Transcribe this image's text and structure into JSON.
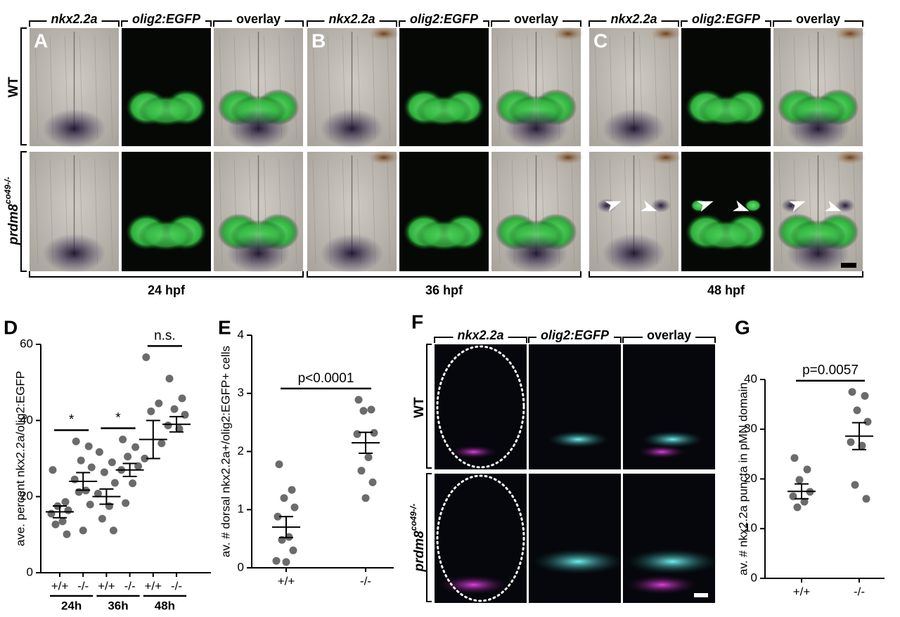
{
  "figure": {
    "panels": [
      {
        "letter": "A",
        "columns": [
          "nkx2.2a",
          "olig2:EGFP",
          "overlay"
        ],
        "time": "24 hpf"
      },
      {
        "letter": "B",
        "columns": [
          "nkx2.2a",
          "olig2:EGFP",
          "overlay"
        ],
        "time": "36 hpf"
      },
      {
        "letter": "C",
        "columns": [
          "nkx2.2a",
          "olig2:EGFP",
          "overlay"
        ],
        "time": "48 hpf"
      }
    ],
    "rows": [
      {
        "label": "WT"
      },
      {
        "label": "prdm8",
        "sup": "co49-/-"
      }
    ],
    "panel_f": {
      "letter": "F",
      "columns": [
        "nkx2.2a",
        "olig2:EGFP",
        "overlay"
      ],
      "rows": [
        {
          "label": "WT"
        },
        {
          "label": "prdm8",
          "sup": "co49-/-"
        }
      ]
    }
  },
  "chart_data": [
    {
      "type": "strip",
      "label": "D",
      "y_label": "ave. percent nkx2.2a/olig2:EGFP",
      "categories": [
        "+/+",
        "-/-",
        "+/+",
        "-/-",
        "+/+",
        "-/-"
      ],
      "groups": [
        "24h",
        "36h",
        "48h"
      ],
      "values": [
        [
          27,
          18.6,
          17.5,
          16.4,
          15.5,
          13.5,
          12.7,
          10.1
        ],
        [
          34.5,
          33.2,
          29.5,
          27.7,
          24.5,
          21.6,
          21.2,
          17.9,
          11.1
        ],
        [
          31.7,
          29,
          26.4,
          23.6,
          20.8,
          17.5,
          14.2,
          11.1
        ],
        [
          35,
          33,
          30.5,
          28,
          27,
          23.5,
          18.3
        ],
        [
          56.6,
          44.5,
          42.4,
          34,
          30
        ],
        [
          51,
          45.8,
          43,
          41.5,
          38.7,
          37.8
        ]
      ],
      "means": [
        16,
        24,
        20,
        27,
        35,
        39
      ],
      "sem": [
        1.55,
        2.3,
        2,
        1.7,
        5,
        2
      ],
      "annotations": [
        "*",
        "*",
        "n.s."
      ],
      "ylim": [
        0,
        60
      ],
      "yticks": [
        0,
        20,
        40,
        60
      ],
      "color": "#6b6b6b"
    },
    {
      "type": "strip",
      "label": "E",
      "y_label": "av. # dorsal nkx2.2a+/olig2:EGFP+ cells",
      "categories": [
        "+/+",
        "-/-"
      ],
      "values": [
        [
          1.78,
          1.34,
          1.2,
          1.04,
          0.88,
          0.53,
          0.48,
          0.3,
          0.1,
          0.12
        ],
        [
          2.89,
          2.72,
          2.7,
          2.32,
          2.3,
          1.9,
          1.67,
          1.47,
          1.2
        ]
      ],
      "means": [
        0.7,
        2.15
      ],
      "sem": [
        0.18,
        0.18
      ],
      "annotations": [
        "p<0.0001"
      ],
      "ylim": [
        0,
        4
      ],
      "yticks": [
        0,
        1,
        2,
        3,
        4
      ],
      "color": "#6b6b6b"
    },
    {
      "type": "strip",
      "label": "G",
      "y_label": "av. # nkx2.2a puncta in pMN domain",
      "categories": [
        "+/+",
        "-/-"
      ],
      "values": [
        [
          24.2,
          21.9,
          19.8,
          17.4,
          16.5,
          15.4,
          14.3
        ],
        [
          37.5,
          36.7,
          33.8,
          31.5,
          27.4,
          26.7,
          18.8,
          16
        ]
      ],
      "means": [
        17.5,
        28.6
      ],
      "sem": [
        1.5,
        2.7
      ],
      "annotations": [
        "p=0.0057"
      ],
      "ylim": [
        0,
        40
      ],
      "yticks": [
        0,
        10,
        20,
        30,
        40
      ],
      "color": "#6b6b6b"
    }
  ]
}
